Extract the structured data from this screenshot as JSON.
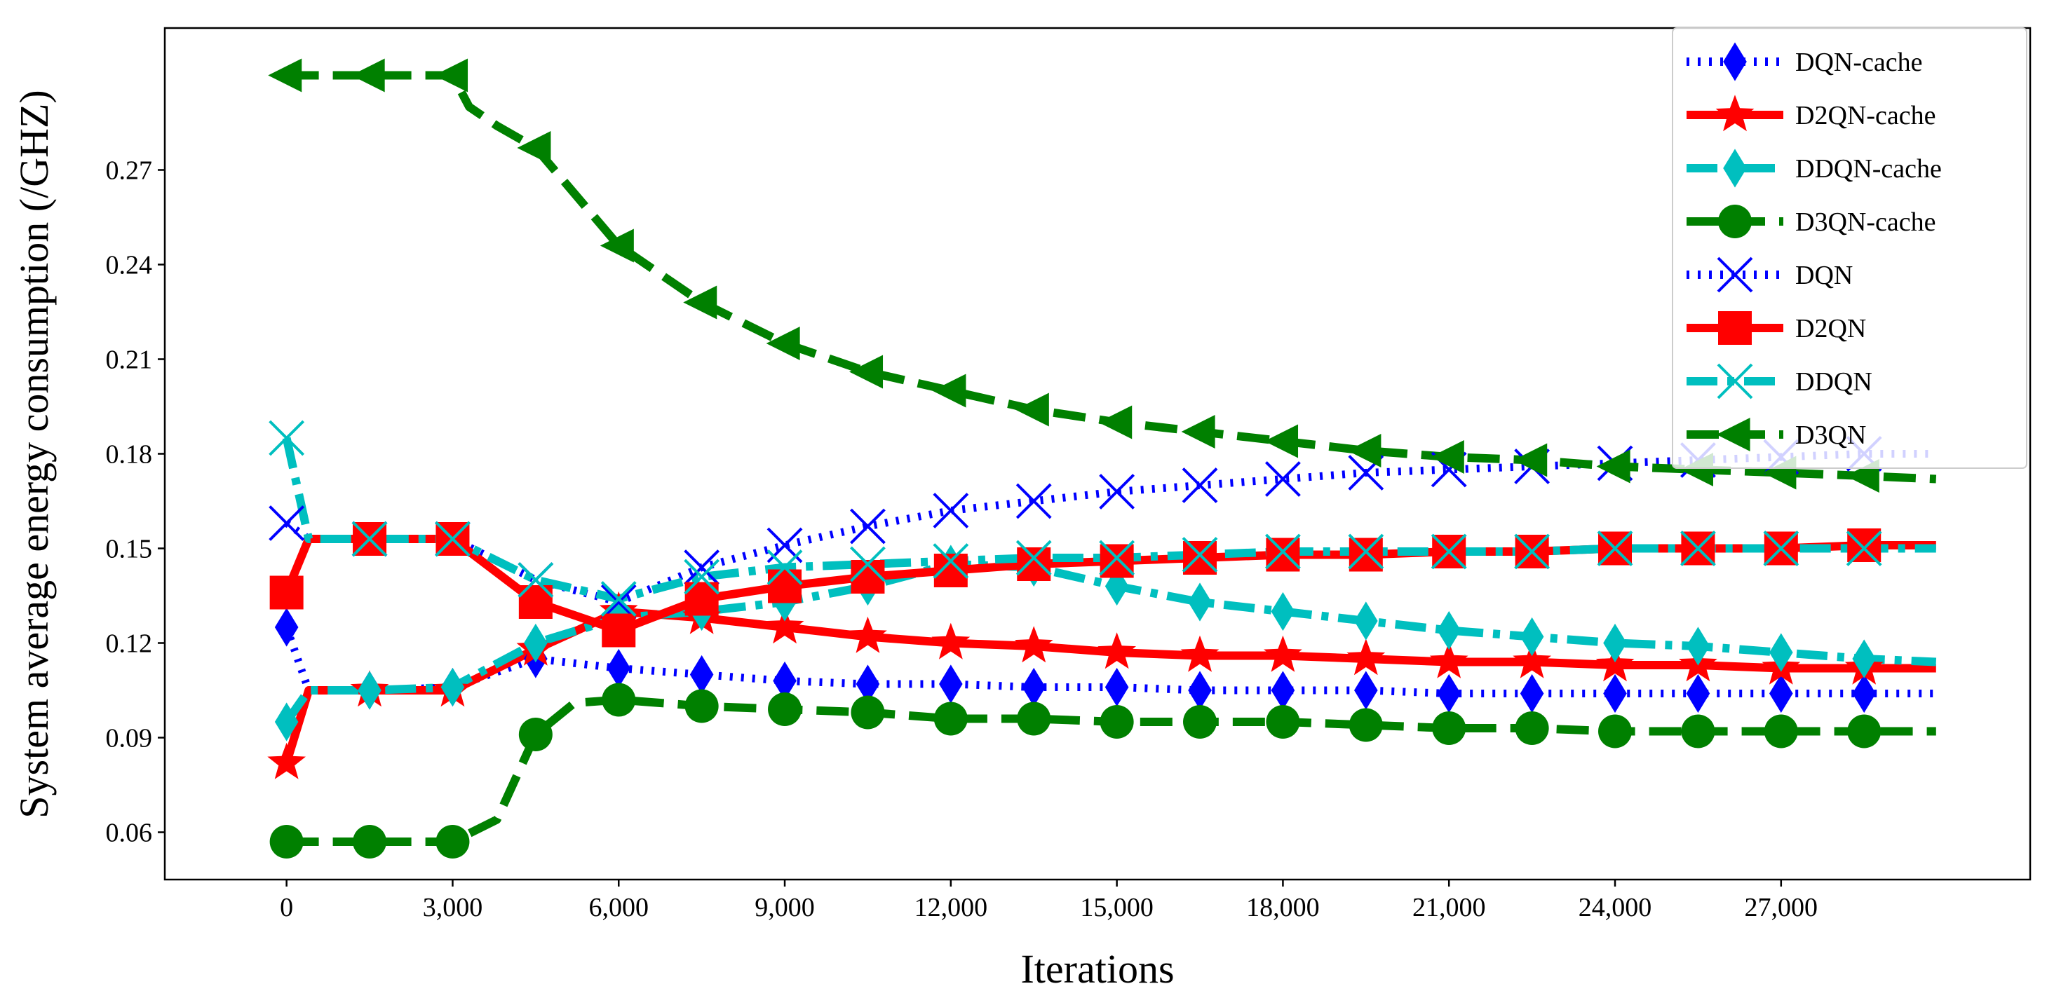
{
  "chart_data": {
    "type": "line",
    "title": "",
    "xlabel": "Iterations",
    "ylabel": "System average energy consumption (/GHZ)",
    "xlim": [
      -2200,
      31500
    ],
    "ylim": [
      0.045,
      0.315
    ],
    "xticks": [
      0,
      3000,
      6000,
      9000,
      12000,
      15000,
      18000,
      21000,
      24000,
      27000
    ],
    "xtick_labels": [
      "0",
      "3,000",
      "6,000",
      "9,000",
      "12,000",
      "15,000",
      "18,000",
      "21,000",
      "24,000",
      "27,000"
    ],
    "yticks": [
      0.06,
      0.09,
      0.12,
      0.15,
      0.18,
      0.21,
      0.24,
      0.27
    ],
    "ytick_labels": [
      "0.06",
      "0.09",
      "0.12",
      "0.15",
      "0.18",
      "0.21",
      "0.24",
      "0.27"
    ],
    "grid": false,
    "legend_position": "top-right",
    "marker_x": [
      0,
      1500,
      3000,
      4500,
      6000,
      7500,
      9000,
      10500,
      12000,
      13500,
      15000,
      16500,
      18000,
      19500,
      21000,
      22500,
      24000,
      25500,
      27000,
      28500
    ],
    "series": [
      {
        "name": "DQN-cache",
        "color": "#0000ff",
        "dash": "dotted",
        "marker": "diamond",
        "x": [
          0,
          400,
          1500,
          3000,
          4500,
          6000,
          7500,
          9000,
          10500,
          12000,
          13500,
          15000,
          16500,
          18000,
          19500,
          21000,
          22500,
          24000,
          25500,
          27000,
          28500,
          29800
        ],
        "values": [
          0.125,
          0.105,
          0.105,
          0.106,
          0.115,
          0.112,
          0.11,
          0.108,
          0.107,
          0.107,
          0.106,
          0.106,
          0.105,
          0.105,
          0.105,
          0.104,
          0.104,
          0.104,
          0.104,
          0.104,
          0.104,
          0.104
        ]
      },
      {
        "name": "D2QN-cache",
        "color": "#ff0000",
        "dash": "solid",
        "marker": "star",
        "x": [
          0,
          400,
          1500,
          3000,
          4500,
          6000,
          7500,
          9000,
          10500,
          12000,
          13500,
          15000,
          16500,
          18000,
          19500,
          21000,
          22500,
          24000,
          25500,
          27000,
          28500,
          29800
        ],
        "values": [
          0.082,
          0.105,
          0.105,
          0.105,
          0.118,
          0.13,
          0.128,
          0.125,
          0.122,
          0.12,
          0.119,
          0.117,
          0.116,
          0.116,
          0.115,
          0.114,
          0.114,
          0.113,
          0.113,
          0.112,
          0.112,
          0.112
        ]
      },
      {
        "name": "DDQN-cache",
        "color": "#00bfbf",
        "dash": "dashdot",
        "marker": "diamond",
        "x": [
          0,
          400,
          1500,
          3000,
          4500,
          6000,
          7500,
          9000,
          10500,
          12000,
          13500,
          15000,
          16500,
          18000,
          19500,
          21000,
          22500,
          24000,
          25500,
          27000,
          28500,
          29800
        ],
        "values": [
          0.095,
          0.105,
          0.105,
          0.106,
          0.12,
          0.128,
          0.13,
          0.133,
          0.138,
          0.145,
          0.144,
          0.138,
          0.133,
          0.13,
          0.127,
          0.124,
          0.122,
          0.12,
          0.119,
          0.117,
          0.115,
          0.114
        ]
      },
      {
        "name": "D3QN-cache",
        "color": "#008000",
        "dash": "dashed",
        "marker": "circle",
        "x": [
          0,
          1500,
          3000,
          3800,
          4500,
          5200,
          6000,
          7500,
          9000,
          10500,
          12000,
          13500,
          15000,
          16500,
          18000,
          19500,
          21000,
          22500,
          24000,
          25500,
          27000,
          28500,
          29800
        ],
        "values": [
          0.057,
          0.057,
          0.057,
          0.064,
          0.091,
          0.101,
          0.102,
          0.1,
          0.099,
          0.098,
          0.096,
          0.096,
          0.095,
          0.095,
          0.095,
          0.094,
          0.093,
          0.093,
          0.092,
          0.092,
          0.092,
          0.092,
          0.092
        ]
      },
      {
        "name": "DQN",
        "color": "#0000ff",
        "dash": "dotted",
        "marker": "x",
        "x": [
          0,
          400,
          1500,
          3000,
          4500,
          6000,
          7500,
          9000,
          10500,
          12000,
          13500,
          15000,
          16500,
          18000,
          19500,
          21000,
          22500,
          24000,
          25500,
          27000,
          28500,
          29800
        ],
        "values": [
          0.158,
          0.153,
          0.153,
          0.153,
          0.14,
          0.133,
          0.144,
          0.151,
          0.157,
          0.162,
          0.165,
          0.168,
          0.17,
          0.172,
          0.174,
          0.175,
          0.176,
          0.177,
          0.178,
          0.179,
          0.18,
          0.18
        ]
      },
      {
        "name": "D2QN",
        "color": "#ff0000",
        "dash": "solid",
        "marker": "square",
        "x": [
          0,
          400,
          1500,
          3000,
          4500,
          6000,
          7500,
          9000,
          10500,
          12000,
          13500,
          15000,
          16500,
          18000,
          19500,
          21000,
          22500,
          24000,
          25500,
          27000,
          28500,
          29800
        ],
        "values": [
          0.136,
          0.153,
          0.153,
          0.153,
          0.133,
          0.124,
          0.134,
          0.138,
          0.141,
          0.143,
          0.145,
          0.146,
          0.147,
          0.148,
          0.148,
          0.149,
          0.149,
          0.15,
          0.15,
          0.15,
          0.151,
          0.151
        ]
      },
      {
        "name": "DDQN",
        "color": "#00bfbf",
        "dash": "dashdot",
        "marker": "x",
        "x": [
          0,
          400,
          1500,
          3000,
          4500,
          6000,
          7500,
          9000,
          10500,
          12000,
          13500,
          15000,
          16500,
          18000,
          19500,
          21000,
          22500,
          24000,
          25500,
          27000,
          28500,
          29800
        ],
        "values": [
          0.185,
          0.153,
          0.153,
          0.153,
          0.14,
          0.134,
          0.141,
          0.144,
          0.145,
          0.146,
          0.147,
          0.147,
          0.148,
          0.149,
          0.149,
          0.149,
          0.149,
          0.15,
          0.15,
          0.15,
          0.15,
          0.15
        ]
      },
      {
        "name": "D3QN",
        "color": "#008000",
        "dash": "dashed",
        "marker": "triangle-left",
        "x": [
          0,
          1500,
          3000,
          3300,
          3800,
          4500,
          6000,
          7500,
          9000,
          10500,
          12000,
          13500,
          15000,
          16500,
          18000,
          19500,
          21000,
          22500,
          24000,
          25500,
          27000,
          28500,
          29800
        ],
        "values": [
          0.3,
          0.3,
          0.3,
          0.29,
          0.284,
          0.277,
          0.246,
          0.228,
          0.215,
          0.206,
          0.2,
          0.194,
          0.19,
          0.187,
          0.184,
          0.181,
          0.179,
          0.178,
          0.176,
          0.175,
          0.174,
          0.173,
          0.172
        ]
      }
    ]
  }
}
